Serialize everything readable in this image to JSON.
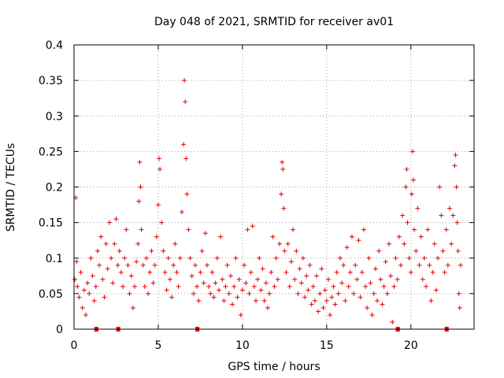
{
  "chart_data": {
    "type": "scatter",
    "title": "Day 048 of 2021, SRMTID for receiver av01",
    "xlabel": "GPS time / hours",
    "ylabel": "SRMTID / TECUs",
    "xlim": [
      0,
      23.75
    ],
    "ylim": [
      0,
      0.4
    ],
    "x_ticks": [
      0,
      5,
      10,
      15,
      20
    ],
    "x_tick_labels": [
      "0",
      "5",
      "10",
      "15",
      "20"
    ],
    "y_ticks": [
      0,
      0.05,
      0.1,
      0.15,
      0.2,
      0.25,
      0.3,
      0.35,
      0.4
    ],
    "y_tick_labels": [
      "0",
      "0.05",
      "0.1",
      "0.15",
      "0.2",
      "0.25",
      "0.3",
      "0.35",
      "0.4"
    ],
    "grid": true,
    "marker": "plus",
    "color": "#e00000",
    "gap_markers_x": [
      1.3,
      2.6,
      7.3,
      19.2,
      22.1
    ],
    "series": [
      {
        "name": "SRMTID",
        "points": [
          [
            0.05,
            0.07
          ],
          [
            0.1,
            0.185
          ],
          [
            0.15,
            0.095
          ],
          [
            0.2,
            0.06
          ],
          [
            0.3,
            0.045
          ],
          [
            0.4,
            0.08
          ],
          [
            0.5,
            0.03
          ],
          [
            0.6,
            0.055
          ],
          [
            0.7,
            0.02
          ],
          [
            0.8,
            0.065
          ],
          [
            0.9,
            0.05
          ],
          [
            1.0,
            0.1
          ],
          [
            1.1,
            0.075
          ],
          [
            1.2,
            0.04
          ],
          [
            1.3,
            0.06
          ],
          [
            1.4,
            0.11
          ],
          [
            1.5,
            0.09
          ],
          [
            1.6,
            0.13
          ],
          [
            1.7,
            0.07
          ],
          [
            1.8,
            0.045
          ],
          [
            1.9,
            0.12
          ],
          [
            2.0,
            0.085
          ],
          [
            2.1,
            0.15
          ],
          [
            2.2,
            0.1
          ],
          [
            2.3,
            0.065
          ],
          [
            2.4,
            0.12
          ],
          [
            2.5,
            0.155
          ],
          [
            2.6,
            0.09
          ],
          [
            2.7,
            0.11
          ],
          [
            2.8,
            0.08
          ],
          [
            2.9,
            0.06
          ],
          [
            3.0,
            0.1
          ],
          [
            3.1,
            0.14
          ],
          [
            3.2,
            0.09
          ],
          [
            3.3,
            0.05
          ],
          [
            3.4,
            0.075
          ],
          [
            3.5,
            0.03
          ],
          [
            3.6,
            0.06
          ],
          [
            3.7,
            0.095
          ],
          [
            3.8,
            0.12
          ],
          [
            3.85,
            0.18
          ],
          [
            3.9,
            0.235
          ],
          [
            3.95,
            0.2
          ],
          [
            4.0,
            0.14
          ],
          [
            4.1,
            0.09
          ],
          [
            4.2,
            0.06
          ],
          [
            4.3,
            0.1
          ],
          [
            4.4,
            0.05
          ],
          [
            4.5,
            0.08
          ],
          [
            4.6,
            0.11
          ],
          [
            4.7,
            0.065
          ],
          [
            4.8,
            0.09
          ],
          [
            4.9,
            0.13
          ],
          [
            5.0,
            0.175
          ],
          [
            5.05,
            0.24
          ],
          [
            5.1,
            0.225
          ],
          [
            5.2,
            0.15
          ],
          [
            5.3,
            0.11
          ],
          [
            5.4,
            0.08
          ],
          [
            5.5,
            0.055
          ],
          [
            5.6,
            0.1
          ],
          [
            5.7,
            0.07
          ],
          [
            5.8,
            0.045
          ],
          [
            5.9,
            0.09
          ],
          [
            6.0,
            0.12
          ],
          [
            6.1,
            0.08
          ],
          [
            6.2,
            0.06
          ],
          [
            6.3,
            0.1
          ],
          [
            6.4,
            0.165
          ],
          [
            6.5,
            0.26
          ],
          [
            6.55,
            0.35
          ],
          [
            6.6,
            0.32
          ],
          [
            6.65,
            0.24
          ],
          [
            6.7,
            0.19
          ],
          [
            6.8,
            0.14
          ],
          [
            6.9,
            0.1
          ],
          [
            7.0,
            0.075
          ],
          [
            7.1,
            0.05
          ],
          [
            7.2,
            0.09
          ],
          [
            7.3,
            0.06
          ],
          [
            7.4,
            0.04
          ],
          [
            7.5,
            0.08
          ],
          [
            7.6,
            0.11
          ],
          [
            7.7,
            0.065
          ],
          [
            7.8,
            0.135
          ],
          [
            7.9,
            0.09
          ],
          [
            8.0,
            0.06
          ],
          [
            8.1,
            0.05
          ],
          [
            8.2,
            0.08
          ],
          [
            8.3,
            0.045
          ],
          [
            8.4,
            0.065
          ],
          [
            8.5,
            0.1
          ],
          [
            8.6,
            0.055
          ],
          [
            8.7,
            0.13
          ],
          [
            8.8,
            0.07
          ],
          [
            8.9,
            0.04
          ],
          [
            9.0,
            0.06
          ],
          [
            9.1,
            0.09
          ],
          [
            9.2,
            0.05
          ],
          [
            9.3,
            0.075
          ],
          [
            9.4,
            0.035
          ],
          [
            9.5,
            0.06
          ],
          [
            9.6,
            0.1
          ],
          [
            9.7,
            0.045
          ],
          [
            9.8,
            0.07
          ],
          [
            9.9,
            0.02
          ],
          [
            10.0,
            0.055
          ],
          [
            10.1,
            0.09
          ],
          [
            10.2,
            0.065
          ],
          [
            10.3,
            0.14
          ],
          [
            10.4,
            0.05
          ],
          [
            10.5,
            0.08
          ],
          [
            10.6,
            0.145
          ],
          [
            10.7,
            0.06
          ],
          [
            10.8,
            0.04
          ],
          [
            10.9,
            0.07
          ],
          [
            11.0,
            0.1
          ],
          [
            11.1,
            0.055
          ],
          [
            11.2,
            0.085
          ],
          [
            11.3,
            0.04
          ],
          [
            11.4,
            0.065
          ],
          [
            11.5,
            0.03
          ],
          [
            11.6,
            0.05
          ],
          [
            11.7,
            0.08
          ],
          [
            11.8,
            0.13
          ],
          [
            11.9,
            0.06
          ],
          [
            12.0,
            0.1
          ],
          [
            12.1,
            0.07
          ],
          [
            12.2,
            0.12
          ],
          [
            12.3,
            0.19
          ],
          [
            12.35,
            0.235
          ],
          [
            12.4,
            0.225
          ],
          [
            12.45,
            0.17
          ],
          [
            12.5,
            0.11
          ],
          [
            12.6,
            0.08
          ],
          [
            12.7,
            0.12
          ],
          [
            12.8,
            0.06
          ],
          [
            12.9,
            0.095
          ],
          [
            13.0,
            0.14
          ],
          [
            13.1,
            0.07
          ],
          [
            13.2,
            0.11
          ],
          [
            13.3,
            0.05
          ],
          [
            13.4,
            0.085
          ],
          [
            13.5,
            0.065
          ],
          [
            13.6,
            0.1
          ],
          [
            13.7,
            0.045
          ],
          [
            13.8,
            0.075
          ],
          [
            13.9,
            0.055
          ],
          [
            14.0,
            0.09
          ],
          [
            14.1,
            0.035
          ],
          [
            14.2,
            0.06
          ],
          [
            14.3,
            0.04
          ],
          [
            14.4,
            0.075
          ],
          [
            14.5,
            0.025
          ],
          [
            14.6,
            0.05
          ],
          [
            14.7,
            0.085
          ],
          [
            14.8,
            0.03
          ],
          [
            14.9,
            0.055
          ],
          [
            15.0,
            0.04
          ],
          [
            15.1,
            0.07
          ],
          [
            15.2,
            0.02
          ],
          [
            15.3,
            0.045
          ],
          [
            15.4,
            0.06
          ],
          [
            15.5,
            0.035
          ],
          [
            15.6,
            0.08
          ],
          [
            15.7,
            0.05
          ],
          [
            15.8,
            0.1
          ],
          [
            15.9,
            0.065
          ],
          [
            16.0,
            0.09
          ],
          [
            16.1,
            0.04
          ],
          [
            16.2,
            0.115
          ],
          [
            16.3,
            0.06
          ],
          [
            16.4,
            0.08
          ],
          [
            16.5,
            0.13
          ],
          [
            16.6,
            0.05
          ],
          [
            16.7,
            0.09
          ],
          [
            16.8,
            0.07
          ],
          [
            16.9,
            0.125
          ],
          [
            17.0,
            0.045
          ],
          [
            17.1,
            0.08
          ],
          [
            17.2,
            0.14
          ],
          [
            17.3,
            0.06
          ],
          [
            17.4,
            0.03
          ],
          [
            17.5,
            0.1
          ],
          [
            17.6,
            0.065
          ],
          [
            17.7,
            0.02
          ],
          [
            17.8,
            0.05
          ],
          [
            17.9,
            0.085
          ],
          [
            18.0,
            0.04
          ],
          [
            18.1,
            0.11
          ],
          [
            18.2,
            0.07
          ],
          [
            18.3,
            0.035
          ],
          [
            18.4,
            0.06
          ],
          [
            18.5,
            0.095
          ],
          [
            18.6,
            0.05
          ],
          [
            18.7,
            0.12
          ],
          [
            18.8,
            0.075
          ],
          [
            18.9,
            0.01
          ],
          [
            19.0,
            0.06
          ],
          [
            19.1,
            0.1
          ],
          [
            19.2,
            0.07
          ],
          [
            19.3,
            0.13
          ],
          [
            19.4,
            0.09
          ],
          [
            19.5,
            0.16
          ],
          [
            19.6,
            0.12
          ],
          [
            19.7,
            0.2
          ],
          [
            19.75,
            0.225
          ],
          [
            19.8,
            0.15
          ],
          [
            19.9,
            0.1
          ],
          [
            20.0,
            0.08
          ],
          [
            20.05,
            0.19
          ],
          [
            20.1,
            0.25
          ],
          [
            20.15,
            0.21
          ],
          [
            20.2,
            0.14
          ],
          [
            20.3,
            0.11
          ],
          [
            20.4,
            0.17
          ],
          [
            20.5,
            0.09
          ],
          [
            20.6,
            0.13
          ],
          [
            20.7,
            0.07
          ],
          [
            20.8,
            0.1
          ],
          [
            20.9,
            0.06
          ],
          [
            21.0,
            0.14
          ],
          [
            21.1,
            0.09
          ],
          [
            21.2,
            0.04
          ],
          [
            21.3,
            0.08
          ],
          [
            21.4,
            0.12
          ],
          [
            21.5,
            0.055
          ],
          [
            21.6,
            0.1
          ],
          [
            21.7,
            0.2
          ],
          [
            21.8,
            0.16
          ],
          [
            21.9,
            0.11
          ],
          [
            22.0,
            0.08
          ],
          [
            22.1,
            0.14
          ],
          [
            22.2,
            0.09
          ],
          [
            22.3,
            0.17
          ],
          [
            22.4,
            0.12
          ],
          [
            22.5,
            0.16
          ],
          [
            22.6,
            0.23
          ],
          [
            22.65,
            0.245
          ],
          [
            22.7,
            0.2
          ],
          [
            22.75,
            0.15
          ],
          [
            22.8,
            0.11
          ],
          [
            22.85,
            0.05
          ],
          [
            22.9,
            0.03
          ],
          [
            22.95,
            0.09
          ]
        ]
      }
    ]
  }
}
